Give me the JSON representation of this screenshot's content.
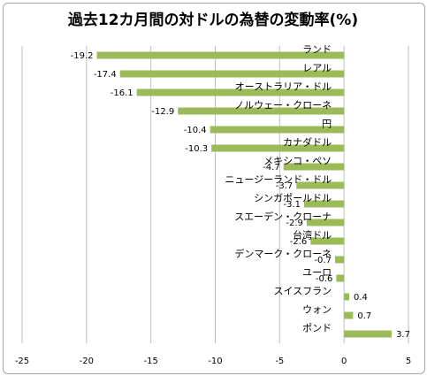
{
  "chart_data": {
    "type": "bar",
    "orientation": "horizontal",
    "title": "過去12カ月間の対ドルの為替の変動率(%)",
    "xlabel": "",
    "ylabel": "",
    "categories": [
      "ランド",
      "レアル",
      "オーストラリア・ドル",
      "ノルウェー・クローネ",
      "円",
      "カナダドル",
      "メキシコ・ペソ",
      "ニュージーランド・ドル",
      "シンガポールドル",
      "スエーデン・クローナ",
      "台湾ドル",
      "デンマーク・クローネ",
      "ユーロ",
      "スイスフラン",
      "ウォン",
      "ポンド"
    ],
    "values": [
      -19.2,
      -17.4,
      -16.1,
      -12.9,
      -10.4,
      -10.3,
      -4.7,
      -3.7,
      -3.1,
      -2.9,
      -2.6,
      -0.7,
      -0.6,
      0.4,
      0.7,
      3.7
    ],
    "value_labels": [
      "-19.2",
      "-17.4",
      "-16.1",
      "-12.9",
      "-10.4",
      "-10.3",
      "-4.7",
      "-3.7",
      "-3.1",
      "-2.9",
      "-2.6",
      "-0.7",
      "-0.6",
      "0.4",
      "0.7",
      "3.7"
    ],
    "xlim": [
      -25,
      5
    ],
    "xticks": [
      -25,
      -20,
      -15,
      -10,
      -5,
      0,
      5
    ],
    "grid": true,
    "legend": "none",
    "bar_color": "#9bbb59"
  }
}
